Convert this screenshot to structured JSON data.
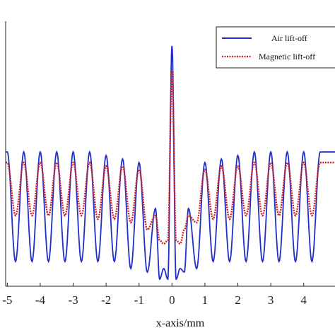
{
  "chart_data": {
    "type": "line",
    "title": "",
    "xlabel": "x-axis/mm",
    "ylabel": "",
    "xlim": [
      -5.05,
      4.95
    ],
    "ylim": [
      0.2,
      0.95
    ],
    "xticks": [
      -5,
      -4,
      -3,
      -2,
      -1,
      0,
      1,
      2,
      3,
      4
    ],
    "xtick_labels": [
      "-5",
      "-4",
      "-3",
      "-2",
      "-1",
      "0",
      "1",
      "2",
      "3",
      "4"
    ],
    "grid": false,
    "legend_position": "top-right",
    "series": [
      {
        "name": "Air lift-off",
        "color": "#1f2fc8",
        "style": "solid",
        "x": [
          -5,
          -4.5,
          -4,
          -3.5,
          -3,
          -2.5,
          -2,
          -1.5,
          -1,
          -0.5,
          -0.25,
          0,
          0.25,
          0.5,
          1,
          1.5,
          2,
          2.5,
          3,
          3.5,
          4,
          4.5
        ],
        "peaks": [
          0.58,
          0.58,
          0.58,
          0.58,
          0.58,
          0.58,
          0.57,
          0.56,
          0.55,
          0.42,
          0.25,
          0.88,
          0.25,
          0.42,
          0.55,
          0.56,
          0.57,
          0.58,
          0.58,
          0.58,
          0.58,
          0.58
        ],
        "troughs": [
          0.27,
          0.27,
          0.27,
          0.27,
          0.27,
          0.27,
          0.27,
          0.27,
          0.25,
          0.24,
          0.22,
          0.22,
          0.24,
          0.25,
          0.27,
          0.27,
          0.27,
          0.27,
          0.27,
          0.27,
          0.27,
          0.27
        ]
      },
      {
        "name": "Magnetic lift-off",
        "color": "#d42020",
        "style": "dotted",
        "x": [
          -5,
          -4.5,
          -4,
          -3.5,
          -3,
          -2.5,
          -2,
          -1.5,
          -1,
          -0.5,
          -0.25,
          0,
          0.25,
          0.5,
          1,
          1.5,
          2,
          2.5,
          3,
          3.5,
          4,
          4.5
        ],
        "peaks": [
          0.55,
          0.55,
          0.55,
          0.55,
          0.55,
          0.55,
          0.54,
          0.54,
          0.53,
          0.4,
          0.32,
          0.81,
          0.32,
          0.4,
          0.53,
          0.54,
          0.54,
          0.55,
          0.55,
          0.55,
          0.55,
          0.55
        ],
        "troughs": [
          0.4,
          0.4,
          0.4,
          0.4,
          0.4,
          0.4,
          0.39,
          0.39,
          0.38,
          0.36,
          0.33,
          0.33,
          0.36,
          0.38,
          0.39,
          0.39,
          0.4,
          0.4,
          0.4,
          0.4,
          0.4,
          0.4
        ]
      }
    ]
  }
}
